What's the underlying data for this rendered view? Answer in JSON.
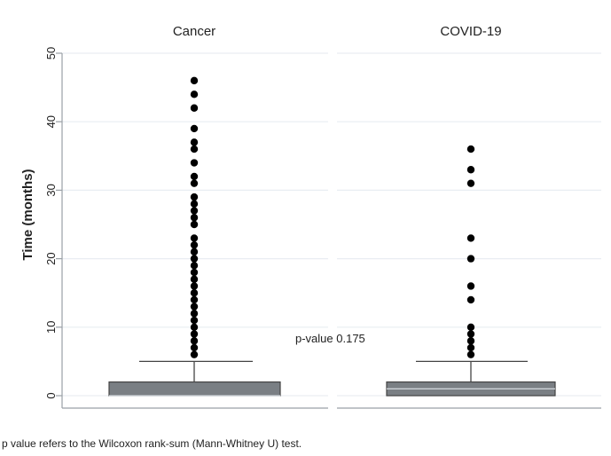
{
  "chart_data": {
    "type": "box",
    "ylabel": "Time (months)",
    "ylim": [
      0,
      50
    ],
    "yticks": [
      0,
      10,
      20,
      30,
      40,
      50
    ],
    "grid": true,
    "panels": [
      {
        "title": "Cancer",
        "box": {
          "q1": 0,
          "median": 0,
          "q3": 2,
          "whisker_low": 0,
          "whisker_high": 5
        },
        "outliers": [
          6,
          7,
          8,
          9,
          10,
          11,
          12,
          13,
          14,
          15,
          16,
          17,
          18,
          19,
          20,
          21,
          22,
          23,
          25,
          26,
          27,
          28,
          29,
          31,
          32,
          34,
          36,
          37,
          39,
          42,
          44,
          46
        ]
      },
      {
        "title": "COVID-19",
        "box": {
          "q1": 0,
          "median": 1,
          "q3": 2,
          "whisker_low": 0,
          "whisker_high": 5
        },
        "outliers": [
          6,
          7,
          8,
          9,
          10,
          14,
          16,
          20,
          23,
          31,
          33,
          36
        ]
      }
    ],
    "annotation": "p-value 0.175"
  },
  "caption": "p value refers to the Wilcoxon rank-sum (Mann-Whitney U) test.",
  "colors": {
    "box": "#7a7f84",
    "line": "#444444",
    "dot": "#000000",
    "grid": "#e9edf2",
    "axis": "#9aa0a6"
  }
}
